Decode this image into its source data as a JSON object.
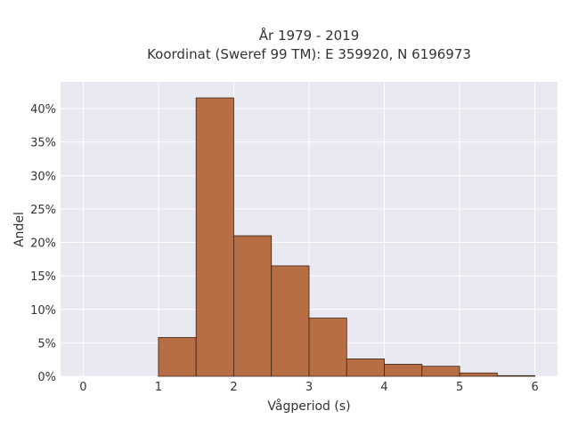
{
  "chart_data": {
    "type": "bar",
    "title_lines": [
      "År 1979 - 2019",
      "Koordinat (Sweref 99 TM): E 359920, N 6196973"
    ],
    "xlabel": "Vågperiod (s)",
    "ylabel": "Andel",
    "xlim": [
      -0.3,
      6.3
    ],
    "ylim": [
      0,
      44
    ],
    "x_ticks": [
      0,
      1,
      2,
      3,
      4,
      5,
      6
    ],
    "y_ticks": [
      0,
      5,
      10,
      15,
      20,
      25,
      30,
      35,
      40
    ],
    "y_tick_suffix": "%",
    "bin_width": 0.5,
    "bins": [
      {
        "start": 1.0,
        "value": 5.8
      },
      {
        "start": 1.5,
        "value": 41.6
      },
      {
        "start": 2.0,
        "value": 21.0
      },
      {
        "start": 2.5,
        "value": 16.5
      },
      {
        "start": 3.0,
        "value": 8.7
      },
      {
        "start": 3.5,
        "value": 2.6
      },
      {
        "start": 4.0,
        "value": 1.8
      },
      {
        "start": 4.5,
        "value": 1.5
      },
      {
        "start": 5.0,
        "value": 0.5
      },
      {
        "start": 5.5,
        "value": 0.1
      }
    ],
    "bar_color": "#b86e45",
    "bar_edge_color": "#3a2414",
    "plot_bg": "#e9e9f1",
    "grid": true,
    "grid_color": "#ffffff"
  }
}
